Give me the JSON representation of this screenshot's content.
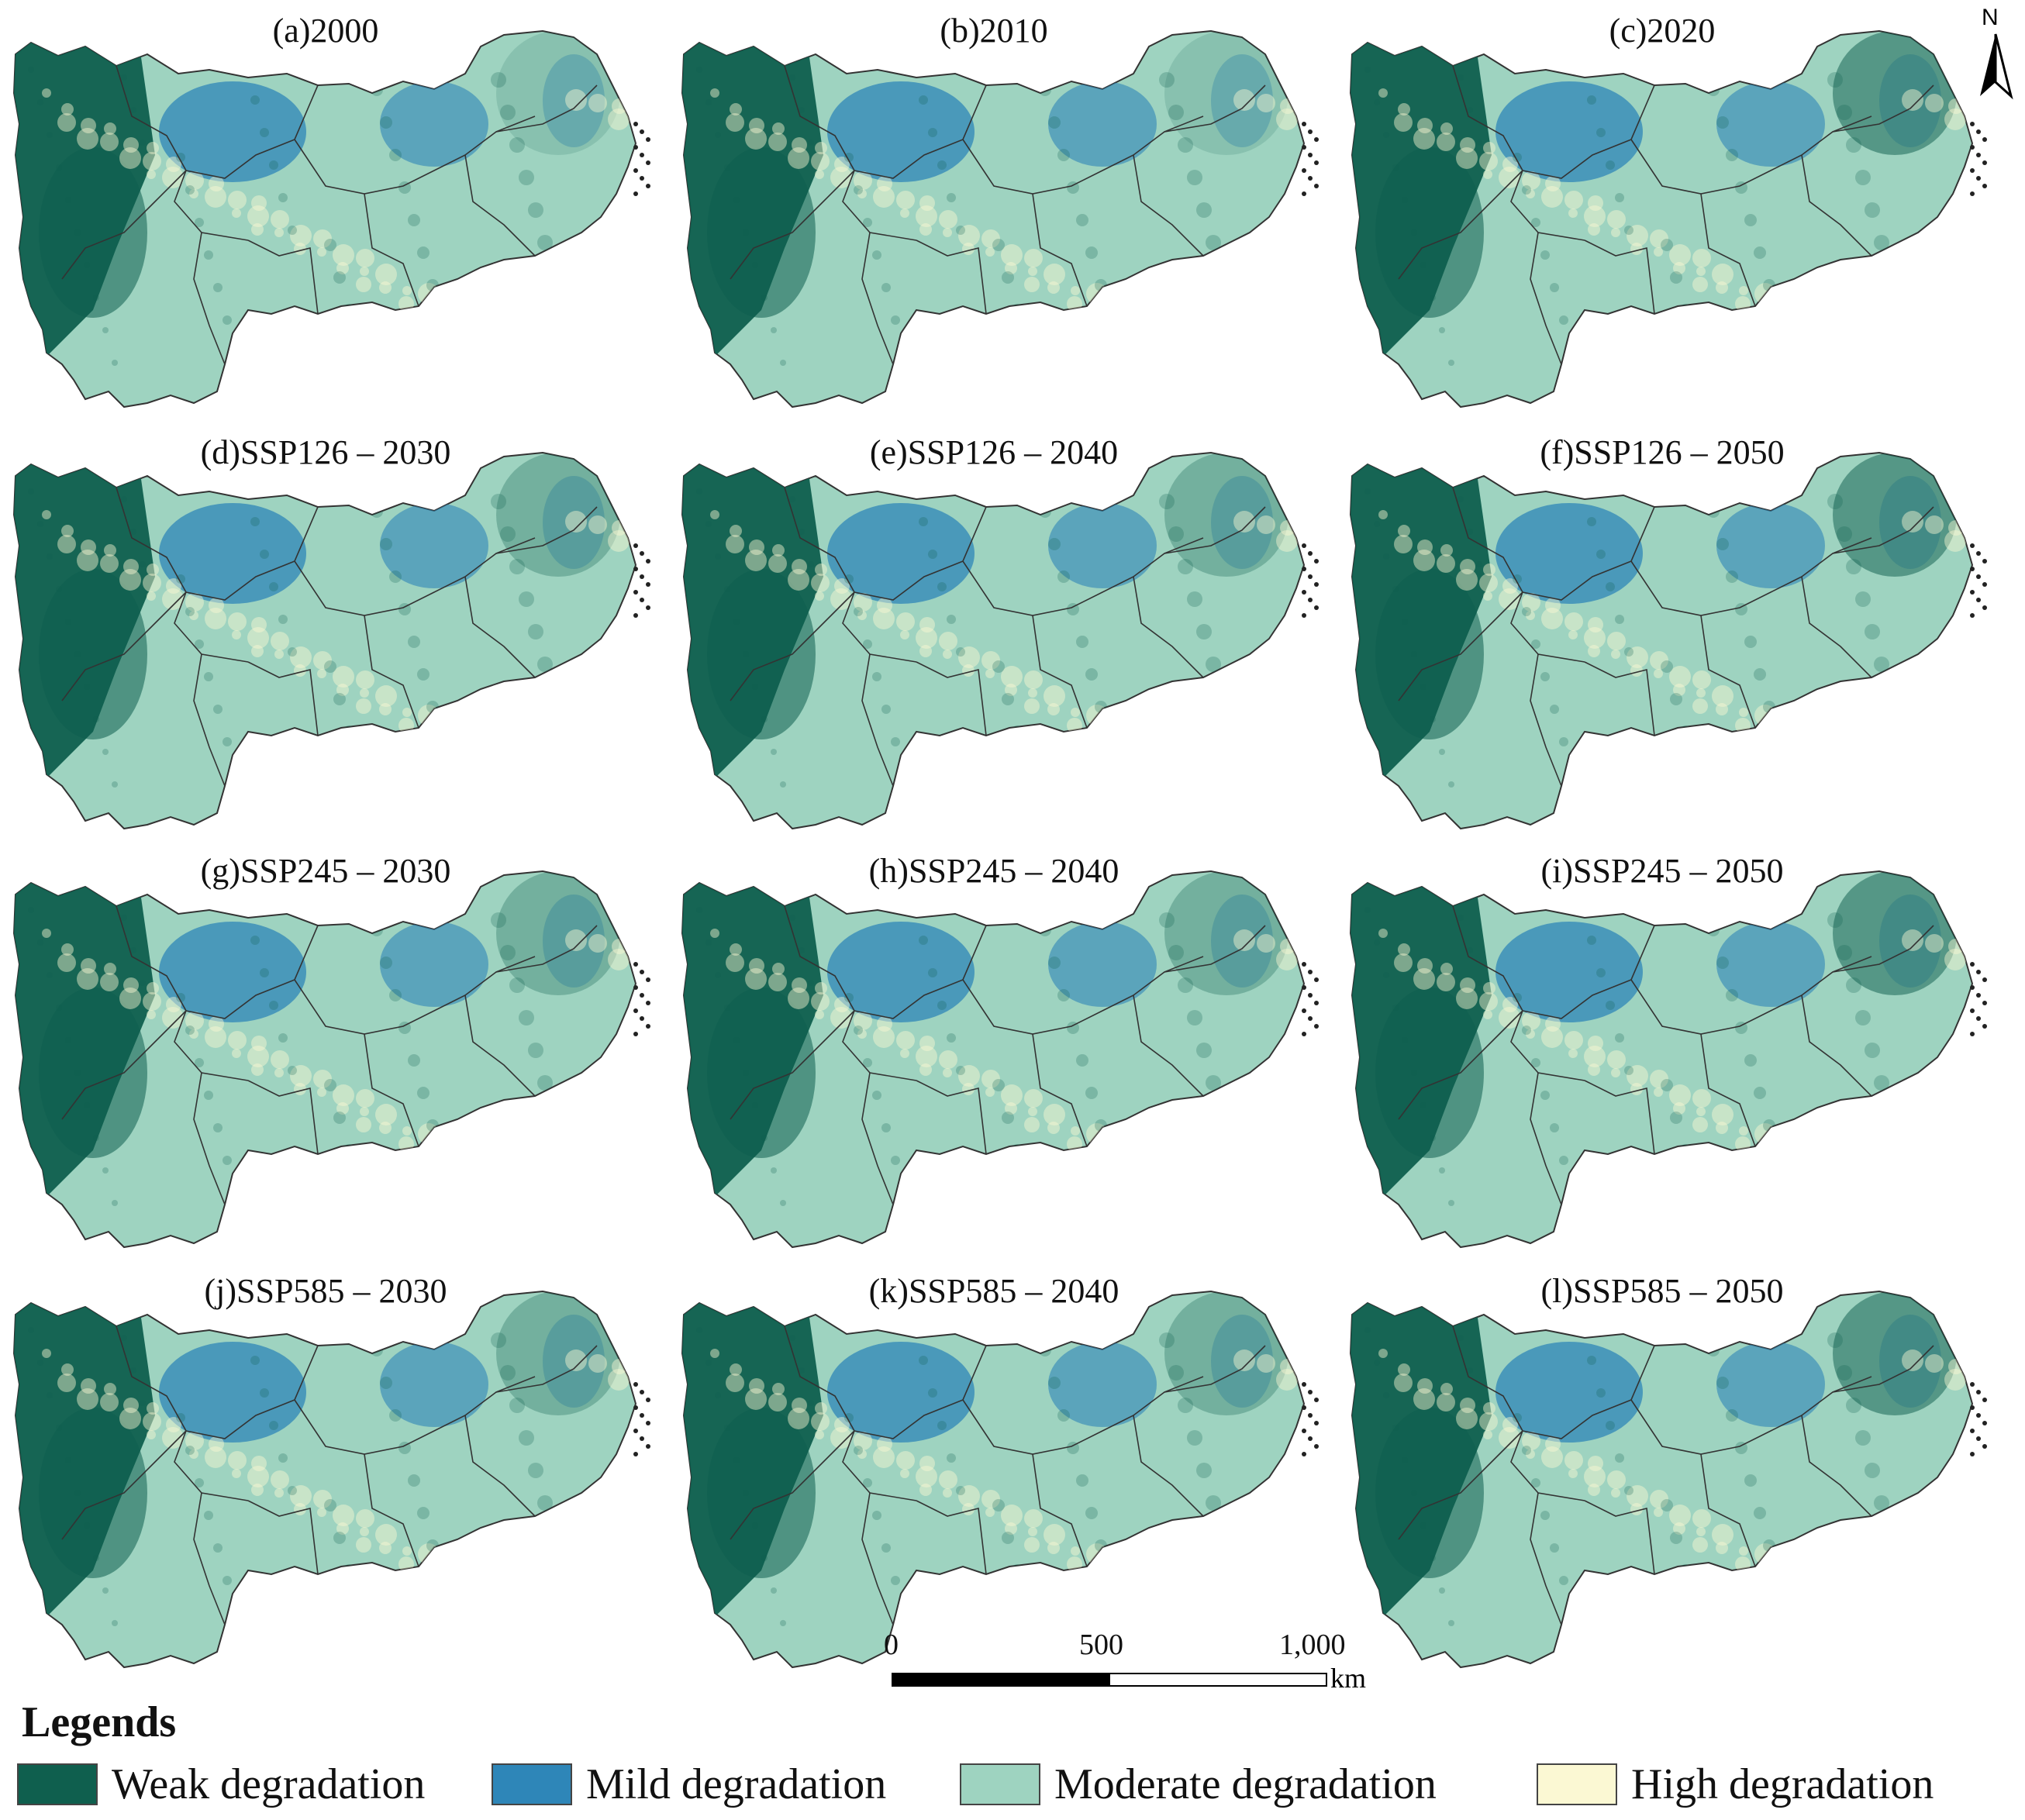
{
  "panels": [
    {
      "label": "(a)2000"
    },
    {
      "label": "(b)2010"
    },
    {
      "label": "(c)2020"
    },
    {
      "label": "(d)SSP126 – 2030"
    },
    {
      "label": "(e)SSP126 – 2040"
    },
    {
      "label": "(f)SSP126 – 2050"
    },
    {
      "label": "(g)SSP245 – 2030"
    },
    {
      "label": "(h)SSP245 – 2040"
    },
    {
      "label": "(i)SSP245 – 2050"
    },
    {
      "label": "(j)SSP585 – 2030"
    },
    {
      "label": "(k)SSP585 – 2040"
    },
    {
      "label": "(l)SSP585 – 2050"
    }
  ],
  "north_arrow": {
    "label": "N"
  },
  "scale_bar": {
    "ticks": [
      "0",
      "500",
      "1,000"
    ],
    "unit": "km"
  },
  "legend": {
    "title": "Legends",
    "items": [
      {
        "label": "Weak degradation",
        "color": "#0f5f4e"
      },
      {
        "label": "Mild degradation",
        "color": "#2e86b8"
      },
      {
        "label": "Moderate degradation",
        "color": "#9ed3c0"
      },
      {
        "label": "High degradation",
        "color": "#fbf8d3"
      }
    ]
  }
}
